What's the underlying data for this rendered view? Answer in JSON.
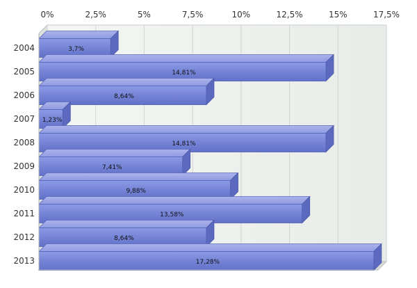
{
  "chart_data": {
    "type": "bar",
    "orientation": "horizontal",
    "style": "3d",
    "categories": [
      "2004",
      "2005",
      "2006",
      "2007",
      "2008",
      "2009",
      "2010",
      "2011",
      "2012",
      "2013"
    ],
    "series": [
      {
        "values": [
          3.7,
          14.81,
          8.64,
          1.23,
          14.81,
          7.41,
          9.88,
          13.58,
          8.64,
          17.28
        ],
        "data_labels": [
          "3,7%",
          "14,81%",
          "8,64%",
          "1,23%",
          "14,81%",
          "7,41%",
          "9,88%",
          "13,58%",
          "8,64%",
          "17,28%"
        ],
        "color": "#7b8ad9"
      }
    ],
    "x_ticks": [
      0,
      2.5,
      5,
      7.5,
      10,
      12.5,
      15,
      17.5
    ],
    "x_tick_labels": [
      "0%",
      "2,5%",
      "5%",
      "7,5%",
      "10%",
      "12,5%",
      "15%",
      "17,5%"
    ],
    "xlim": [
      0,
      17.5
    ],
    "x_axis_position": "top",
    "grid": true,
    "legend": "none",
    "title": "",
    "xlabel": "",
    "ylabel": ""
  }
}
